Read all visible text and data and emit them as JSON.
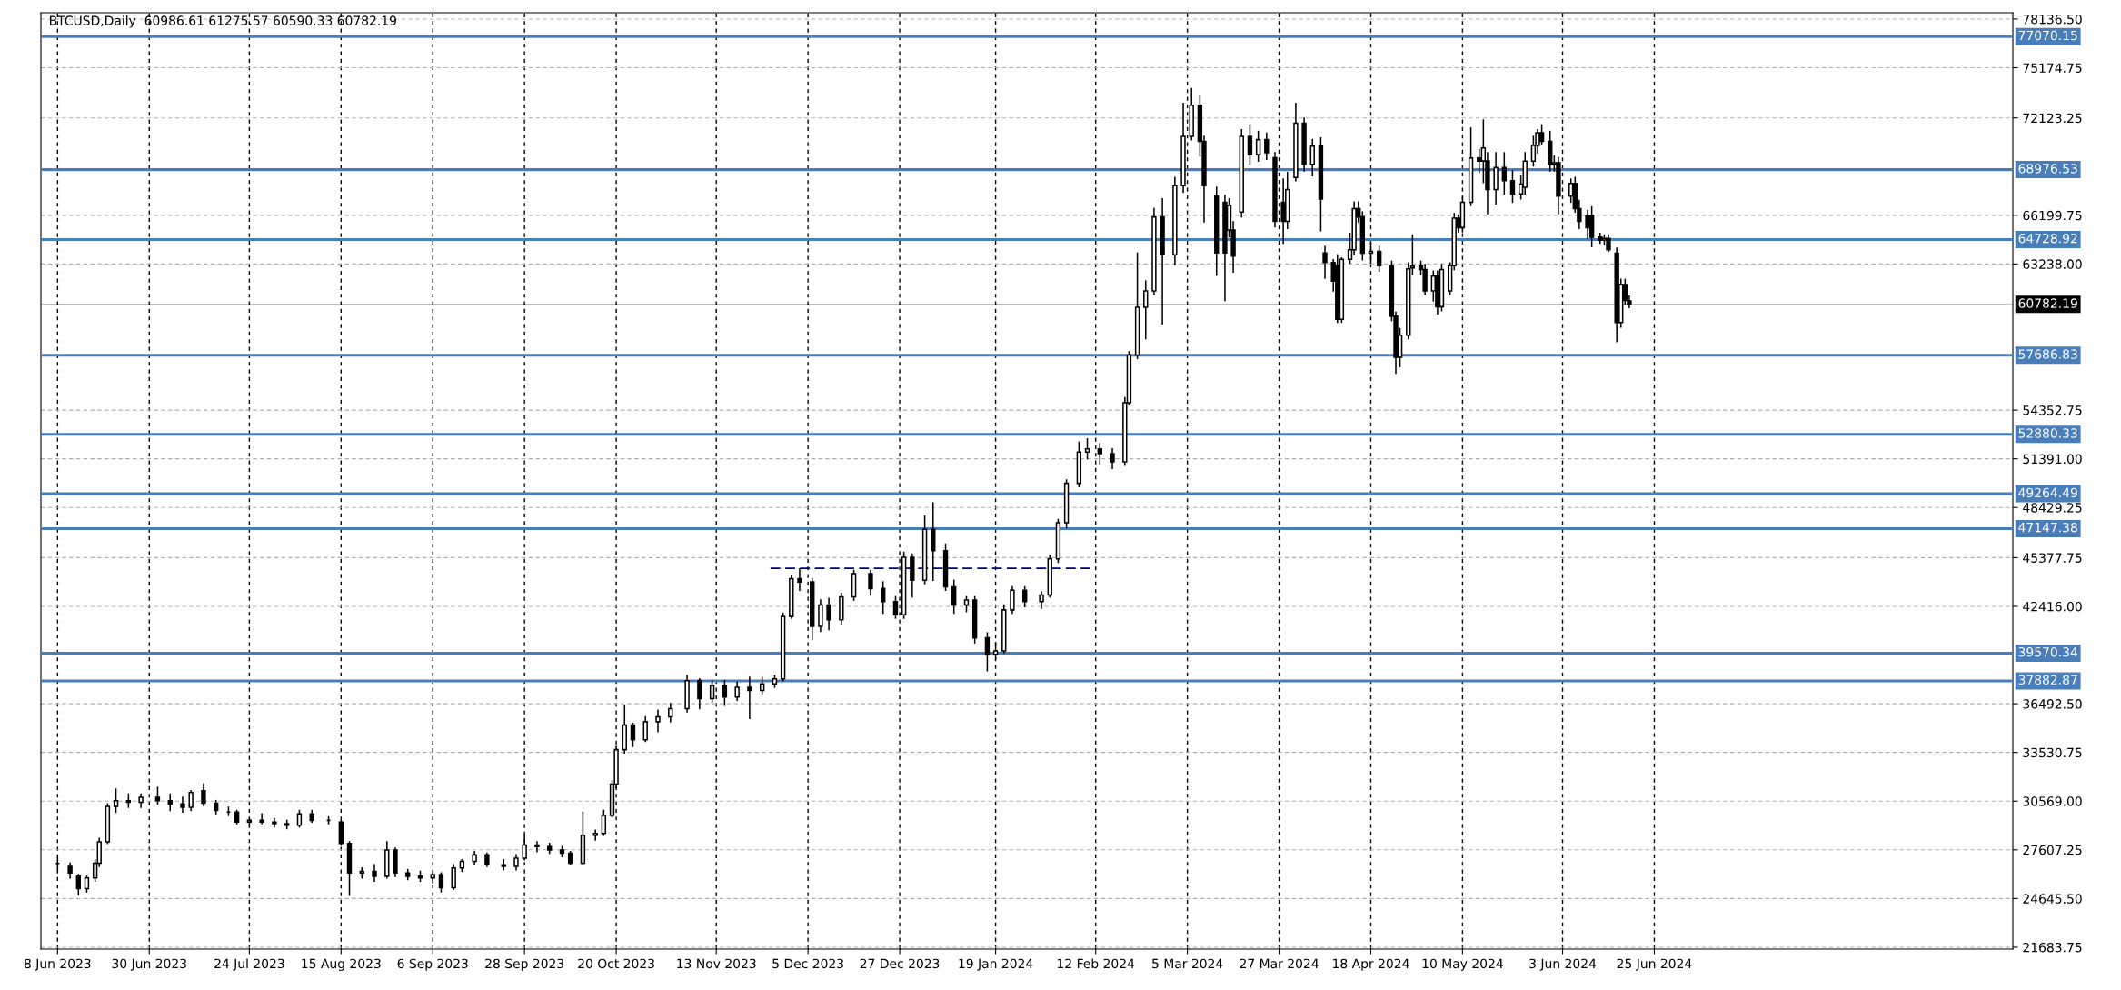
{
  "chart_data": {
    "type": "candlestick",
    "title": "BTCUSD,Daily  60986.61 61275.57 60590.33 60782.19",
    "x": [
      "2023-06-08",
      "2023-06-11",
      "2023-06-13",
      "2023-06-15",
      "2023-06-17",
      "2023-06-18",
      "2023-06-20",
      "2023-06-22",
      "2023-06-25",
      "2023-06-28",
      "2023-07-02",
      "2023-07-05",
      "2023-07-08",
      "2023-07-10",
      "2023-07-13",
      "2023-07-16",
      "2023-07-19",
      "2023-07-21",
      "2023-07-24",
      "2023-07-27",
      "2023-07-30",
      "2023-08-02",
      "2023-08-05",
      "2023-08-08",
      "2023-08-12",
      "2023-08-15",
      "2023-08-17",
      "2023-08-20",
      "2023-08-23",
      "2023-08-26",
      "2023-08-28",
      "2023-08-31",
      "2023-09-03",
      "2023-09-06",
      "2023-09-08",
      "2023-09-11",
      "2023-09-13",
      "2023-09-16",
      "2023-09-19",
      "2023-09-23",
      "2023-09-26",
      "2023-09-28",
      "2023-10-01",
      "2023-10-04",
      "2023-10-07",
      "2023-10-09",
      "2023-10-12",
      "2023-10-15",
      "2023-10-17",
      "2023-10-19",
      "2023-10-20",
      "2023-10-22",
      "2023-10-24",
      "2023-10-27",
      "2023-10-30",
      "2023-11-02",
      "2023-11-06",
      "2023-11-09",
      "2023-11-12",
      "2023-11-15",
      "2023-11-18",
      "2023-11-21",
      "2023-11-24",
      "2023-11-27",
      "2023-11-29",
      "2023-12-01",
      "2023-12-03",
      "2023-12-06",
      "2023-12-08",
      "2023-12-10",
      "2023-12-13",
      "2023-12-16",
      "2023-12-20",
      "2023-12-23",
      "2023-12-26",
      "2023-12-28",
      "2023-12-30",
      "2024-01-02",
      "2024-01-04",
      "2024-01-07",
      "2024-01-09",
      "2024-01-12",
      "2024-01-14",
      "2024-01-17",
      "2024-01-19",
      "2024-01-21",
      "2024-01-23",
      "2024-01-26",
      "2024-01-30",
      "2024-02-01",
      "2024-02-03",
      "2024-02-05",
      "2024-02-08",
      "2024-02-10",
      "2024-02-13",
      "2024-02-16",
      "2024-02-19",
      "2024-02-20",
      "2024-02-22",
      "2024-02-24",
      "2024-02-26",
      "2024-02-28",
      "2024-03-02",
      "2024-03-04",
      "2024-03-06",
      "2024-03-08",
      "2024-03-09",
      "2024-03-12",
      "2024-03-14",
      "2024-03-15",
      "2024-03-16",
      "2024-03-18",
      "2024-03-20",
      "2024-03-22",
      "2024-03-24",
      "2024-03-26",
      "2024-03-28",
      "2024-03-29",
      "2024-03-31",
      "2024-04-02",
      "2024-04-04",
      "2024-04-06",
      "2024-04-07",
      "2024-04-09",
      "2024-04-10",
      "2024-04-11",
      "2024-04-13",
      "2024-04-14",
      "2024-04-15",
      "2024-04-16",
      "2024-04-18",
      "2024-04-20",
      "2024-04-23",
      "2024-04-24",
      "2024-04-25",
      "2024-04-27",
      "2024-04-28",
      "2024-04-30",
      "2024-05-01",
      "2024-05-03",
      "2024-05-04",
      "2024-05-05",
      "2024-05-07",
      "2024-05-08",
      "2024-05-09",
      "2024-05-10",
      "2024-05-12",
      "2024-05-14",
      "2024-05-15",
      "2024-05-16",
      "2024-05-18",
      "2024-05-20",
      "2024-05-22",
      "2024-05-24",
      "2024-05-25",
      "2024-05-27",
      "2024-05-28",
      "2024-05-29",
      "2024-05-31",
      "2024-06-01",
      "2024-06-02",
      "2024-06-05",
      "2024-06-06",
      "2024-06-07",
      "2024-06-09",
      "2024-06-10",
      "2024-06-12",
      "2024-06-13",
      "2024-06-14",
      "2024-06-16",
      "2024-06-17",
      "2024-06-18",
      "2024-06-19"
    ],
    "ohlc": [
      [
        26780,
        27100,
        26400,
        26780
      ],
      [
        26600,
        26800,
        25900,
        26200
      ],
      [
        26000,
        26100,
        24860,
        25250
      ],
      [
        25250,
        26000,
        25050,
        25900
      ],
      [
        25900,
        27000,
        25700,
        26800
      ],
      [
        26800,
        28300,
        26600,
        28100
      ],
      [
        28100,
        30400,
        28000,
        30250
      ],
      [
        30250,
        31300,
        29900,
        30600
      ],
      [
        30600,
        31000,
        30200,
        30500
      ],
      [
        30500,
        31000,
        30200,
        30800
      ],
      [
        30800,
        31400,
        30400,
        30600
      ],
      [
        30600,
        31000,
        30000,
        30400
      ],
      [
        30400,
        30800,
        29900,
        30200
      ],
      [
        30200,
        31200,
        30000,
        31100
      ],
      [
        31200,
        31600,
        30300,
        30440
      ],
      [
        30440,
        30600,
        29800,
        30000
      ],
      [
        29900,
        30200,
        29700,
        29900
      ],
      [
        29900,
        30000,
        29200,
        29300
      ],
      [
        29300,
        29500,
        29100,
        29400
      ],
      [
        29400,
        29800,
        29200,
        29300
      ],
      [
        29300,
        29500,
        29000,
        29200
      ],
      [
        29200,
        29400,
        28900,
        29100
      ],
      [
        29100,
        30000,
        29000,
        29800
      ],
      [
        29800,
        30000,
        29300,
        29400
      ],
      [
        29400,
        29600,
        29200,
        29400
      ],
      [
        29300,
        29400,
        27900,
        28000
      ],
      [
        28000,
        28100,
        24850,
        26200
      ],
      [
        26200,
        26500,
        25900,
        26300
      ],
      [
        26300,
        26700,
        25700,
        26000
      ],
      [
        26000,
        28100,
        25900,
        27600
      ],
      [
        27600,
        27700,
        26000,
        26200
      ],
      [
        26200,
        26400,
        25800,
        26000
      ],
      [
        26000,
        26300,
        25700,
        25900
      ],
      [
        25900,
        26200,
        25600,
        26100
      ],
      [
        26100,
        26200,
        25050,
        25300
      ],
      [
        25300,
        26700,
        25200,
        26500
      ],
      [
        26500,
        27000,
        26300,
        26900
      ],
      [
        26900,
        27500,
        26700,
        27300
      ],
      [
        27300,
        27400,
        26600,
        26700
      ],
      [
        26700,
        27000,
        26400,
        26600
      ],
      [
        26600,
        27300,
        26400,
        27100
      ],
      [
        27100,
        28500,
        27000,
        27900
      ],
      [
        27900,
        28100,
        27500,
        27800
      ],
      [
        27800,
        28000,
        27400,
        27600
      ],
      [
        27600,
        27800,
        27200,
        27400
      ],
      [
        27400,
        27500,
        26700,
        26800
      ],
      [
        26800,
        29900,
        26700,
        28500
      ],
      [
        28500,
        28800,
        28200,
        28600
      ],
      [
        28600,
        30000,
        28500,
        29700
      ],
      [
        29700,
        31800,
        29600,
        31600
      ],
      [
        31600,
        33900,
        31400,
        33700
      ],
      [
        33700,
        36400,
        33500,
        35200
      ],
      [
        35200,
        35300,
        33900,
        34300
      ],
      [
        34300,
        35700,
        34200,
        35400
      ],
      [
        35400,
        36100,
        34800,
        35700
      ],
      [
        35700,
        36500,
        35400,
        36200
      ],
      [
        36200,
        38200,
        36000,
        37900
      ],
      [
        37900,
        38000,
        36200,
        36800
      ],
      [
        36800,
        37900,
        36600,
        37600
      ],
      [
        37600,
        37900,
        36400,
        36900
      ],
      [
        36900,
        37800,
        36700,
        37500
      ],
      [
        37500,
        38100,
        35600,
        37300
      ],
      [
        37300,
        38100,
        37100,
        37700
      ],
      [
        37700,
        38200,
        37500,
        38000
      ],
      [
        38000,
        42000,
        37900,
        41800
      ],
      [
        41800,
        44300,
        41700,
        44100
      ],
      [
        44100,
        44700,
        43400,
        43900
      ],
      [
        43900,
        44100,
        40400,
        41200
      ],
      [
        41200,
        42800,
        40900,
        42500
      ],
      [
        42500,
        42900,
        41000,
        41600
      ],
      [
        41600,
        43200,
        41300,
        43000
      ],
      [
        43000,
        44600,
        42800,
        44400
      ],
      [
        44400,
        44600,
        43100,
        43500
      ],
      [
        43500,
        43900,
        42000,
        42700
      ],
      [
        42700,
        43000,
        41700,
        41900
      ],
      [
        41900,
        45700,
        41700,
        45400
      ],
      [
        45400,
        45600,
        43000,
        44000
      ],
      [
        44000,
        47900,
        43800,
        47100
      ],
      [
        47100,
        48700,
        44000,
        45800
      ],
      [
        45800,
        46200,
        43400,
        43600
      ],
      [
        43600,
        44000,
        42000,
        42500
      ],
      [
        42500,
        43000,
        42100,
        42800
      ],
      [
        42800,
        43000,
        40200,
        40500
      ],
      [
        40500,
        40800,
        38500,
        39500
      ],
      [
        39500,
        40200,
        39200,
        39700
      ],
      [
        39700,
        42500,
        39600,
        42200
      ],
      [
        42200,
        43600,
        42000,
        43400
      ],
      [
        43400,
        43600,
        42400,
        42700
      ],
      [
        42700,
        43300,
        42300,
        43100
      ],
      [
        43100,
        45500,
        43000,
        45300
      ],
      [
        45300,
        47700,
        45100,
        47500
      ],
      [
        47500,
        50100,
        47200,
        49900
      ],
      [
        49900,
        52400,
        49700,
        51800
      ],
      [
        51800,
        52600,
        51400,
        52000
      ],
      [
        52000,
        52300,
        51100,
        51700
      ],
      [
        51700,
        52000,
        50800,
        51200
      ],
      [
        51200,
        55100,
        51000,
        54800
      ],
      [
        54800,
        57900,
        54700,
        57700
      ],
      [
        57700,
        63900,
        57500,
        60600
      ],
      [
        60600,
        62200,
        58700,
        61600
      ],
      [
        61600,
        66600,
        61400,
        66100
      ],
      [
        66100,
        67200,
        59600,
        63800
      ],
      [
        63800,
        68500,
        63200,
        68000
      ],
      [
        68000,
        73000,
        67600,
        71000
      ],
      [
        71000,
        73900,
        70800,
        72900
      ],
      [
        72900,
        73500,
        69800,
        70700
      ],
      [
        70700,
        71000,
        65800,
        68000
      ],
      [
        67370,
        67900,
        62560,
        63910
      ],
      [
        66990,
        67400,
        61020,
        63910
      ],
      [
        65300,
        67200,
        64900,
        66800
      ],
      [
        65300,
        65800,
        62750,
        63720
      ],
      [
        66400,
        71400,
        66100,
        71000
      ],
      [
        71000,
        71700,
        69300,
        69900
      ],
      [
        69900,
        71300,
        69500,
        70800
      ],
      [
        70800,
        71200,
        69600,
        70000
      ],
      [
        69700,
        70000,
        65500,
        65830
      ],
      [
        66990,
        68400,
        64500,
        65830
      ],
      [
        65830,
        68800,
        65400,
        67760
      ],
      [
        68500,
        73000,
        68300,
        71800
      ],
      [
        71800,
        72100,
        68900,
        69300
      ],
      [
        69300,
        70800,
        68600,
        70400
      ],
      [
        70400,
        70900,
        65260,
        67180
      ],
      [
        63910,
        64300,
        62370,
        63330
      ],
      [
        63330,
        63500,
        61600,
        62200
      ],
      [
        63140,
        63800,
        59700,
        59870
      ],
      [
        59870,
        63600,
        59700,
        63520
      ],
      [
        63520,
        65100,
        63300,
        64100
      ],
      [
        64100,
        67000,
        63800,
        66600
      ],
      [
        66600,
        67000,
        65800,
        66100
      ],
      [
        66100,
        66400,
        63500,
        63900
      ],
      [
        63900,
        64500,
        63300,
        64000
      ],
      [
        64000,
        64300,
        62800,
        63140
      ],
      [
        63140,
        63400,
        59800,
        60060
      ],
      [
        60060,
        60300,
        56600,
        57560
      ],
      [
        57560,
        59300,
        57000,
        58910
      ],
      [
        58910,
        63300,
        58700,
        62940
      ],
      [
        63000,
        65000,
        62600,
        63100
      ],
      [
        63100,
        63400,
        62600,
        62900
      ],
      [
        62900,
        63200,
        61400,
        61600
      ],
      [
        61600,
        62800,
        61000,
        62500
      ],
      [
        62500,
        62800,
        60200,
        60640
      ],
      [
        60640,
        63200,
        60400,
        62900
      ],
      [
        61600,
        63300,
        61400,
        63140
      ],
      [
        63140,
        66300,
        62900,
        66030
      ],
      [
        66030,
        66200,
        65200,
        65450
      ],
      [
        65450,
        67300,
        65200,
        66990
      ],
      [
        66990,
        71500,
        66800,
        69680
      ],
      [
        69680,
        70200,
        68800,
        69500
      ],
      [
        69500,
        71990,
        68200,
        70300
      ],
      [
        69500,
        70000,
        66300,
        67760
      ],
      [
        67760,
        70000,
        66900,
        69100
      ],
      [
        69100,
        70000,
        67500,
        68300
      ],
      [
        68300,
        68900,
        67000,
        67500
      ],
      [
        67500,
        68600,
        67200,
        68100
      ],
      [
        67900,
        70000,
        67500,
        69490
      ],
      [
        69490,
        71000,
        69200,
        70450
      ],
      [
        70450,
        71400,
        70000,
        71220
      ],
      [
        71220,
        71700,
        70500,
        70700
      ],
      [
        70700,
        71300,
        68900,
        69300
      ],
      [
        69300,
        69800,
        68900,
        69400
      ],
      [
        69400,
        69700,
        66300,
        67370
      ],
      [
        67370,
        68400,
        67000,
        68140
      ],
      [
        68140,
        68500,
        66400,
        66600
      ],
      [
        66600,
        67100,
        65400,
        65830
      ],
      [
        66200,
        66500,
        64800,
        65450
      ],
      [
        66200,
        66700,
        64300,
        64870
      ],
      [
        64870,
        65100,
        64500,
        64700
      ],
      [
        64700,
        65000,
        64400,
        64800
      ],
      [
        64800,
        65000,
        64000,
        64100
      ],
      [
        63900,
        64200,
        58520,
        59680
      ],
      [
        59680,
        62300,
        59400,
        61990
      ],
      [
        61990,
        62300,
        60800,
        61020
      ],
      [
        60986.61,
        61275.57,
        60590.33,
        60782.19
      ]
    ],
    "color": "#000000",
    "series": [
      {
        "type": "line",
        "x": [
          "2023-11-26",
          "2024-02-11"
        ],
        "values": [
          44730,
          44730
        ],
        "color": "#000080",
        "line_style": "dashed"
      }
    ],
    "xlim": [
      "2023-06-04",
      "2024-09-19"
    ],
    "xticks": [
      {
        "value": "2023-06-08",
        "label": "8 Jun 2023"
      },
      {
        "value": "2023-06-30",
        "label": "30 Jun 2023"
      },
      {
        "value": "2023-07-24",
        "label": "24 Jul 2023"
      },
      {
        "value": "2023-08-15",
        "label": "15 Aug 2023"
      },
      {
        "value": "2023-09-06",
        "label": "6 Sep 2023"
      },
      {
        "value": "2023-09-28",
        "label": "28 Sep 2023"
      },
      {
        "value": "2023-10-20",
        "label": "20 Oct 2023"
      },
      {
        "value": "2023-11-13",
        "label": "13 Nov 2023"
      },
      {
        "value": "2023-12-05",
        "label": "5 Dec 2023"
      },
      {
        "value": "2023-12-27",
        "label": "27 Dec 2023"
      },
      {
        "value": "2024-01-19",
        "label": "19 Jan 2024"
      },
      {
        "value": "2024-02-12",
        "label": "12 Feb 2024"
      },
      {
        "value": "2024-03-05",
        "label": "5 Mar 2024"
      },
      {
        "value": "2024-03-27",
        "label": "27 Mar 2024"
      },
      {
        "value": "2024-04-18",
        "label": "18 Apr 2024"
      },
      {
        "value": "2024-05-10",
        "label": "10 May 2024"
      },
      {
        "value": "2024-06-03",
        "label": "3 Jun 2024"
      },
      {
        "value": "2024-06-25",
        "label": "25 Jun 2024"
      }
    ],
    "ylim": [
      21570,
      78520
    ],
    "yticks": [
      {
        "value": 21683.75,
        "label": "21683.75"
      },
      {
        "value": 24645.5,
        "label": "24645.50"
      },
      {
        "value": 27607.25,
        "label": "27607.25"
      },
      {
        "value": 30569,
        "label": "30569.00"
      },
      {
        "value": 33530.75,
        "label": "33530.75"
      },
      {
        "value": 36492.5,
        "label": "36492.50"
      },
      {
        "value": 42416,
        "label": "42416.00"
      },
      {
        "value": 45377.75,
        "label": "45377.75"
      },
      {
        "value": 48429.25,
        "label": "48429.25"
      },
      {
        "value": 51391,
        "label": "51391.00"
      },
      {
        "value": 54352.75,
        "label": "54352.75"
      },
      {
        "value": 63238,
        "label": "63238.00"
      },
      {
        "value": 66199.75,
        "label": "66199.75"
      },
      {
        "value": 72123.25,
        "label": "72123.25"
      },
      {
        "value": 75174.75,
        "label": "75174.75"
      },
      {
        "value": 78136.5,
        "label": "78136.50"
      }
    ],
    "ref_lines": [
      {
        "axis": "y",
        "value": 77070.15,
        "label": "77070.15",
        "color": "#4a7ebb"
      },
      {
        "axis": "y",
        "value": 68976.53,
        "label": "68976.53",
        "color": "#4a7ebb"
      },
      {
        "axis": "y",
        "value": 64728.92,
        "label": "64728.92",
        "color": "#4a7ebb"
      },
      {
        "axis": "y",
        "value": 60782.19,
        "label": "60782.19",
        "color": "#000000"
      },
      {
        "axis": "y",
        "value": 57686.83,
        "label": "57686.83",
        "color": "#4a7ebb"
      },
      {
        "axis": "y",
        "value": 52880.33,
        "label": "52880.33",
        "color": "#4a7ebb"
      },
      {
        "axis": "y",
        "value": 49264.49,
        "label": "49264.49",
        "color": "#4a7ebb"
      },
      {
        "axis": "y",
        "value": 47147.38,
        "label": "47147.38",
        "color": "#4a7ebb"
      },
      {
        "axis": "y",
        "value": 39570.34,
        "label": "39570.34",
        "color": "#4a7ebb"
      },
      {
        "axis": "y",
        "value": 37882.87,
        "label": "37882.87",
        "color": "#4a7ebb"
      }
    ],
    "grid": true,
    "legend": false
  }
}
